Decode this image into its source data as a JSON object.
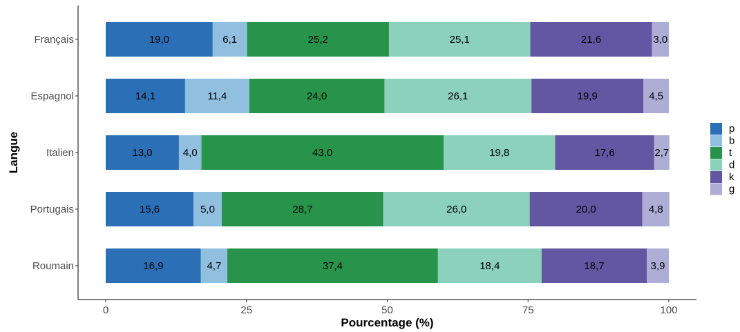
{
  "chart_data": {
    "type": "bar",
    "orientation": "horizontal",
    "stacked": true,
    "xlabel": "Pourcentage (%)",
    "ylabel": "Langue",
    "xlim": [
      0,
      100
    ],
    "xticks": [
      0,
      25,
      50,
      75,
      100
    ],
    "grid": false,
    "legend_position": "right",
    "categories": [
      "Français",
      "Espagnol",
      "Italien",
      "Portugais",
      "Roumain"
    ],
    "series": [
      {
        "name": "p",
        "color": "#2B6FB6",
        "values": [
          19.0,
          14.1,
          13.0,
          15.6,
          16.9
        ],
        "labels": [
          "19,0",
          "14,1",
          "13,0",
          "15,6",
          "16,9"
        ]
      },
      {
        "name": "b",
        "color": "#91BFDF",
        "values": [
          6.1,
          11.4,
          4.0,
          5.0,
          4.7
        ],
        "labels": [
          "6,1",
          "11,4",
          "4,0",
          "5,0",
          "4,7"
        ]
      },
      {
        "name": "t",
        "color": "#28944B",
        "values": [
          25.2,
          24.0,
          43.0,
          28.7,
          37.4
        ],
        "labels": [
          "25,2",
          "24,0",
          "43,0",
          "28,7",
          "37,4"
        ]
      },
      {
        "name": "d",
        "color": "#8BD1BC",
        "values": [
          25.1,
          26.1,
          19.8,
          26.0,
          18.4
        ],
        "labels": [
          "25,1",
          "26,1",
          "19,8",
          "26,0",
          "18,4"
        ]
      },
      {
        "name": "k",
        "color": "#6356A3",
        "values": [
          21.6,
          19.9,
          17.6,
          20.0,
          18.7
        ],
        "labels": [
          "21,6",
          "19,9",
          "17,6",
          "20,0",
          "18,7"
        ]
      },
      {
        "name": "g",
        "color": "#ADADD6",
        "values": [
          3.0,
          4.5,
          2.7,
          4.8,
          3.9
        ],
        "labels": [
          "3,0",
          "4,5",
          "2,7",
          "4,8",
          "3,9"
        ]
      }
    ]
  }
}
